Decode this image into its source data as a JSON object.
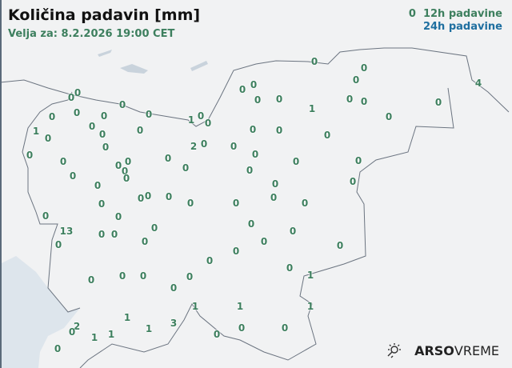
{
  "header": {
    "title": "Količina padavin [mm]",
    "valid": "Velja za: 8.2.2026 19:00 CET"
  },
  "legend": {
    "item_12h_prefix": "0",
    "item_12h": "12h padavine",
    "item_24h": "24h padavine",
    "color_12h": "#3d7f5e",
    "color_24h": "#1f6fa0"
  },
  "logo": {
    "brand_bold": "ARSO",
    "brand_light": "VREME",
    "icon": "sun-rain-icon"
  },
  "stations": [
    "0",
    "0",
    "0",
    "0",
    "0",
    "0",
    "0",
    "1",
    "0",
    "0",
    "1",
    "0",
    "0",
    "0",
    "0",
    "0",
    "0",
    "2",
    "0",
    "0",
    "0",
    "0",
    "0",
    "0",
    "0",
    "0",
    "0",
    "0",
    "0",
    "0",
    "0",
    "0",
    "0",
    "0",
    "0",
    "0",
    "0",
    "0",
    "0",
    "0",
    "1",
    "0",
    "0",
    "0",
    "0",
    "4",
    "0",
    "0",
    "0",
    "0",
    "0",
    "0",
    "0",
    "0",
    "0",
    "0",
    "0",
    "0",
    "0",
    "0",
    "0",
    "13",
    "0",
    "0",
    "0",
    "0",
    "0",
    "0",
    "0",
    "0",
    "0",
    "0",
    "0",
    "0",
    "0",
    "0",
    "0",
    "0",
    "0",
    "1",
    "1",
    "1",
    "1",
    "1",
    "1",
    "3",
    "2",
    "0",
    "1",
    "1",
    "0",
    "0",
    "0",
    "0"
  ]
}
